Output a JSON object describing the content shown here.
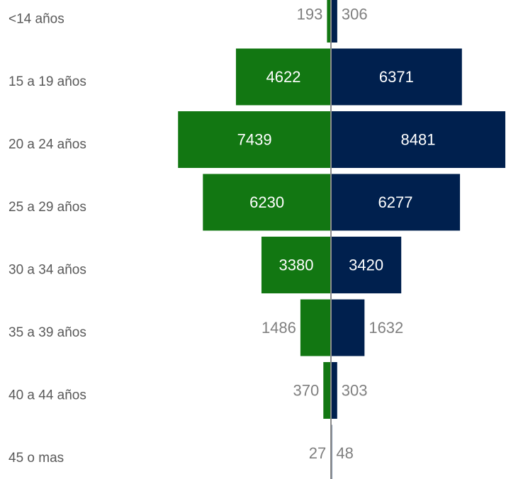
{
  "chart_data": {
    "type": "bar",
    "orientation": "horizontal-diverging",
    "categories": [
      "<14 años",
      "15 a 19 años",
      "20 a 24 años",
      "25 a 29 años",
      "30 a 34 años",
      "35 a 39 años",
      "40 a 44 años",
      "45 o mas"
    ],
    "series": [
      {
        "values": [
          193,
          4622,
          7439,
          6230,
          3380,
          1486,
          370,
          27
        ],
        "color": "#127712",
        "side": "left"
      },
      {
        "values": [
          306,
          6371,
          8481,
          6277,
          3420,
          1632,
          303,
          48
        ],
        "color": "#00204e",
        "side": "right"
      }
    ],
    "axis_line_color": "#8c8c8c",
    "grid": false,
    "legend": "none"
  }
}
